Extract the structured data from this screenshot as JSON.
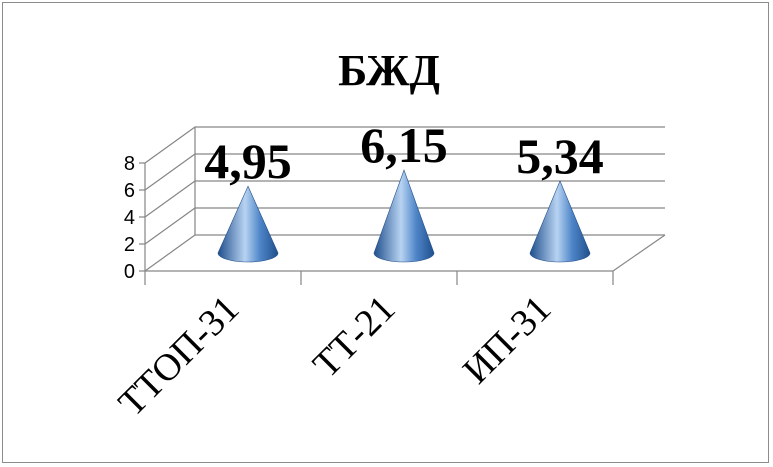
{
  "chart_data": {
    "type": "bar",
    "subtype": "3d-cone",
    "title": "БЖД",
    "categories": [
      "ТТОП-31",
      "ТТ-21",
      "ИП-31"
    ],
    "values": [
      4.95,
      6.15,
      5.34
    ],
    "data_labels": [
      "4,95",
      "6,15",
      "5,34"
    ],
    "yticks": [
      "0",
      "2",
      "4",
      "6",
      "8"
    ],
    "ylim": [
      0,
      8
    ],
    "xlabel": "",
    "ylabel": "",
    "grid": true,
    "legend": "none",
    "colors": {
      "cone_light": "#b8d3f2",
      "cone_mid": "#4f86c9",
      "cone_dark": "#1f4f8c",
      "grid": "#868686"
    }
  }
}
